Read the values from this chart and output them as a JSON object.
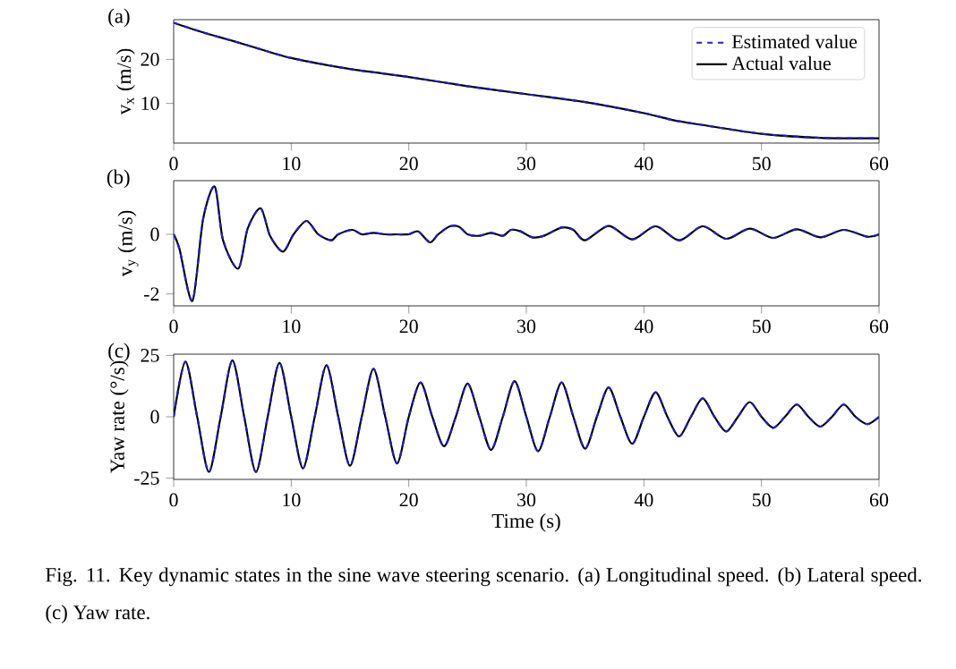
{
  "chart_data": [
    {
      "type": "line",
      "ylabel": "v$_{x}$ (m/s)",
      "legend": "top right",
      "annotations": [
        "(a)"
      ],
      "x": [
        0,
        2.5,
        5,
        7.5,
        10,
        15,
        20,
        25,
        30,
        35,
        40,
        42.5,
        45,
        50,
        55,
        60
      ],
      "xlim": [
        0,
        60
      ],
      "xticks": [
        0,
        10,
        20,
        30,
        40,
        50,
        60
      ],
      "ylim": [
        1,
        29
      ],
      "yticks": [
        10,
        20
      ],
      "series": [
        {
          "name": "Estimated value",
          "color": "#1f1fbf",
          "line_style": "dashed",
          "values": [
            28.3,
            26.1,
            24.2,
            22.2,
            20.3,
            17.8,
            16.0,
            13.9,
            12.1,
            10.3,
            7.8,
            6.2,
            5.1,
            3.1,
            2.2,
            2.1
          ]
        },
        {
          "name": "Actual value",
          "color": "#000000",
          "line_style": "solid",
          "values": [
            28.3,
            26.1,
            24.2,
            22.2,
            20.3,
            17.8,
            16.0,
            13.9,
            12.1,
            10.3,
            7.8,
            6.2,
            5.1,
            3.1,
            2.2,
            2.1
          ]
        }
      ]
    },
    {
      "type": "line",
      "ylabel": "v$_{y}$ (m/s)",
      "annotations": [
        "(b)"
      ],
      "x": [
        0,
        0.5,
        1.6,
        2.5,
        3.5,
        4.2,
        5.5,
        6.3,
        7.4,
        8.2,
        9.3,
        10.2,
        11.3,
        12.3,
        13.4,
        14,
        15.2,
        16,
        17,
        18,
        19,
        20,
        20.8,
        21.8,
        22.5,
        23.5,
        24.3,
        25,
        26,
        27,
        28,
        28.7,
        29.5,
        30.5,
        31.5,
        33,
        34,
        35,
        37,
        39,
        41,
        43,
        45,
        47,
        49,
        51,
        53,
        55,
        57,
        59,
        60
      ],
      "xlim": [
        0,
        60
      ],
      "xticks": [
        0,
        10,
        20,
        30,
        40,
        50,
        60
      ],
      "ylim": [
        -2.4,
        1.8
      ],
      "yticks": [
        -2,
        0
      ],
      "series": [
        {
          "color": "#1f1fbf",
          "line_style": "dashed",
          "values": [
            0,
            -0.5,
            -2.23,
            0.5,
            1.6,
            -0.2,
            -1.15,
            0.2,
            0.87,
            -0.05,
            -0.58,
            0,
            0.45,
            0,
            -0.2,
            0,
            0.15,
            0,
            0.05,
            0,
            0,
            0,
            0.1,
            -0.27,
            0,
            0.27,
            0.25,
            0,
            -0.05,
            0.05,
            -0.05,
            0.15,
            0.1,
            -0.1,
            -0.05,
            0.23,
            0.15,
            -0.2,
            0.28,
            -0.17,
            0.27,
            -0.2,
            0.27,
            -0.15,
            0.19,
            -0.12,
            0.17,
            -0.1,
            0.15,
            -0.08,
            0
          ]
        },
        {
          "color": "#000000",
          "line_style": "solid",
          "values": [
            0,
            -0.5,
            -2.23,
            0.5,
            1.6,
            -0.2,
            -1.15,
            0.2,
            0.87,
            -0.05,
            -0.58,
            0,
            0.45,
            0,
            -0.2,
            0,
            0.15,
            0,
            0.05,
            0,
            0,
            0,
            0.1,
            -0.27,
            0,
            0.27,
            0.25,
            0,
            -0.05,
            0.05,
            -0.05,
            0.15,
            0.1,
            -0.1,
            -0.05,
            0.23,
            0.15,
            -0.2,
            0.28,
            -0.17,
            0.27,
            -0.2,
            0.27,
            -0.15,
            0.19,
            -0.12,
            0.17,
            -0.1,
            0.15,
            -0.08,
            0
          ]
        }
      ]
    },
    {
      "type": "line",
      "ylabel": "Yaw rate (°/s)",
      "xlabel": "Time (s)",
      "annotations": [
        "(c)",
        "Fig. 11.  Key dynamic states in the sine wave steering scenario. (a) Longitudinal speed. (b) Lateral speed. (c) Yaw rate."
      ],
      "x": [
        0,
        1,
        2,
        3,
        4,
        5,
        6,
        7,
        8,
        9,
        10,
        11,
        12,
        13,
        14,
        15,
        16,
        17,
        18,
        19,
        20,
        21,
        22,
        23,
        24,
        25,
        26,
        27,
        28,
        29,
        30,
        31,
        32,
        33,
        34,
        35,
        36,
        37,
        38,
        39,
        40,
        41,
        42,
        43,
        44,
        45,
        46,
        47,
        48,
        49,
        50,
        51,
        52,
        53,
        54,
        55,
        56,
        57,
        58,
        59,
        60
      ],
      "xlim": [
        0,
        60
      ],
      "xticks": [
        0,
        10,
        20,
        30,
        40,
        50,
        60
      ],
      "ylim": [
        -25.5,
        25.5
      ],
      "yticks": [
        -25,
        0,
        25
      ],
      "series": [
        {
          "color": "#1f1fbf",
          "line_style": "dashed",
          "values": [
            0,
            22.5,
            0,
            -22.5,
            0,
            23,
            0,
            -22.5,
            0,
            22,
            0,
            -21,
            0,
            21,
            0,
            -20,
            0,
            19.5,
            0,
            -19,
            0,
            14,
            0,
            -12,
            0,
            13.5,
            0,
            -13.5,
            0,
            14.5,
            0,
            -14,
            0,
            14,
            0,
            -13,
            0,
            12,
            0,
            -11,
            0,
            10,
            0,
            -8,
            0,
            7.5,
            0,
            -6,
            0,
            6,
            0,
            -4.5,
            0,
            5,
            0,
            -4,
            0,
            5,
            0,
            -3,
            0
          ]
        },
        {
          "color": "#000000",
          "line_style": "solid",
          "values": [
            0,
            22.5,
            0,
            -22.5,
            0,
            23,
            0,
            -22.5,
            0,
            22,
            0,
            -21,
            0,
            21,
            0,
            -20,
            0,
            19.5,
            0,
            -19,
            0,
            14,
            0,
            -12,
            0,
            13.5,
            0,
            -13.5,
            0,
            14.5,
            0,
            -14,
            0,
            14,
            0,
            -13,
            0,
            12,
            0,
            -11,
            0,
            10,
            0,
            -8,
            0,
            7.5,
            0,
            -6,
            0,
            6,
            0,
            -4.5,
            0,
            5,
            0,
            -4,
            0,
            5,
            0,
            -3,
            0
          ]
        }
      ]
    }
  ]
}
